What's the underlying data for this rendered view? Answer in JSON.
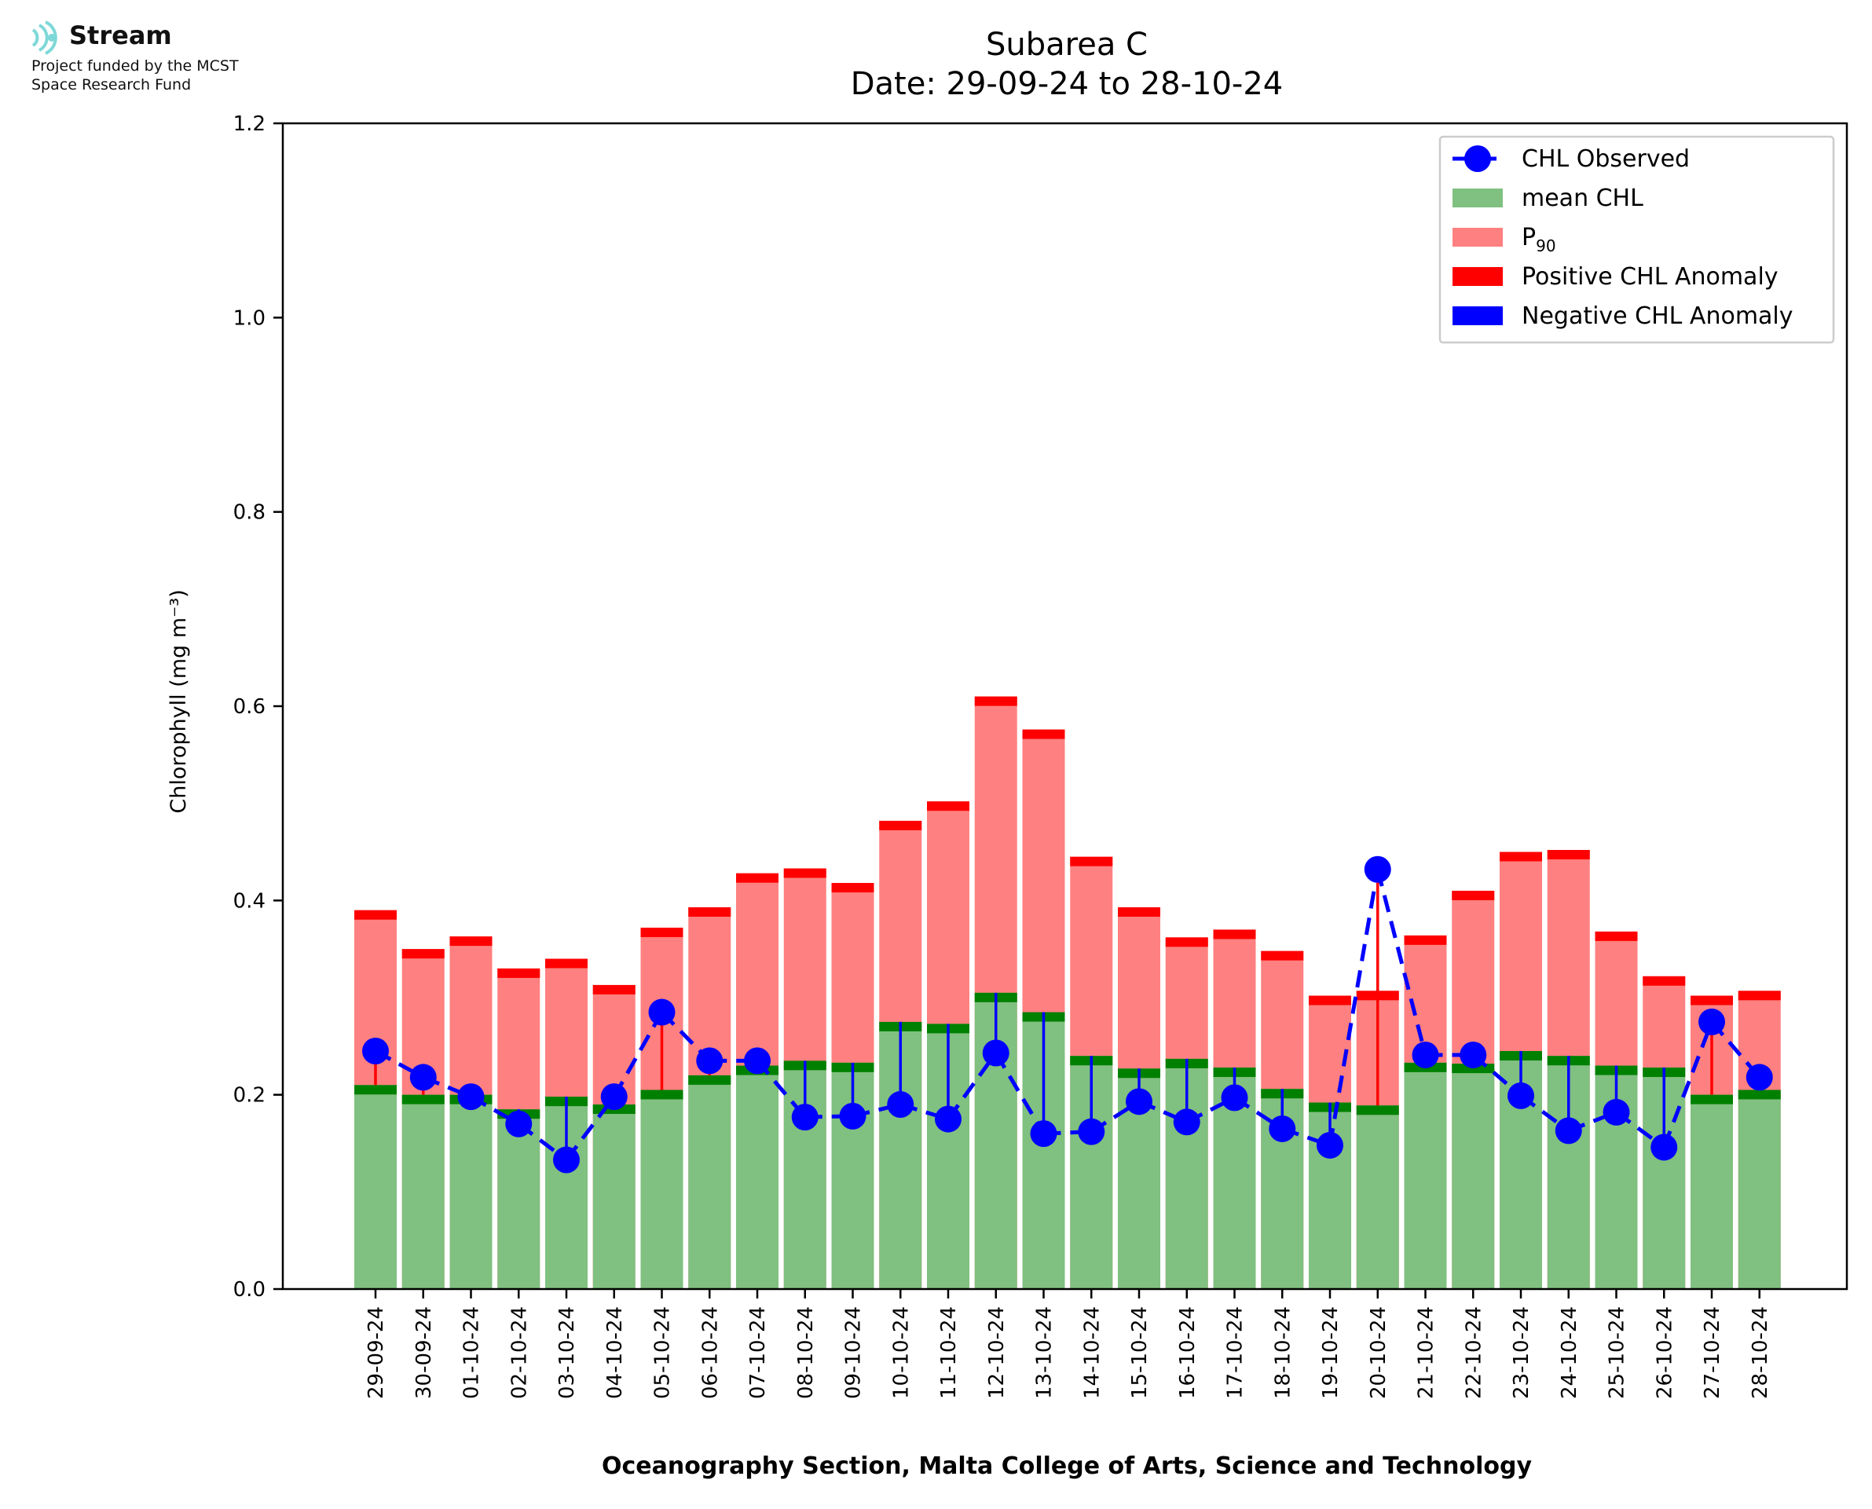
{
  "logo": {
    "name": "Stream",
    "subtitle_line1": "Project funded by the MCST",
    "subtitle_line2": "Space Research Fund",
    "icon": "stream-waves-icon"
  },
  "chart_data": {
    "type": "bar",
    "title": "Subarea C",
    "subtitle": "Date: 29-09-24 to 28-10-24",
    "ylabel": "Chlorophyll (mg m⁻³)",
    "xlabel": "Oceanography Section, Malta College of Arts, Science and Technology",
    "ylim": [
      0,
      1.2
    ],
    "yticks": [
      "0.0",
      "0.2",
      "0.4",
      "0.6",
      "0.8",
      "1.0",
      "1.2"
    ],
    "grid": false,
    "legend_position": "top-right",
    "legend": [
      "CHL Observed",
      "mean CHL",
      "P",
      "Positive CHL Anomaly",
      "Negative CHL Anomaly"
    ],
    "legend_p90_subscript": "90",
    "colors": {
      "observed": "#0000ff",
      "mean": "#80c080",
      "mean_cap": "#008000",
      "p90": "#ff8080",
      "p90_cap": "#ff0000",
      "positive": "#ff0000",
      "negative": "#0000ff"
    },
    "categories": [
      "29-09-24",
      "30-09-24",
      "01-10-24",
      "02-10-24",
      "03-10-24",
      "04-10-24",
      "05-10-24",
      "06-10-24",
      "07-10-24",
      "08-10-24",
      "09-10-24",
      "10-10-24",
      "11-10-24",
      "12-10-24",
      "13-10-24",
      "14-10-24",
      "15-10-24",
      "16-10-24",
      "17-10-24",
      "18-10-24",
      "19-10-24",
      "20-10-24",
      "21-10-24",
      "22-10-24",
      "23-10-24",
      "24-10-24",
      "25-10-24",
      "26-10-24",
      "27-10-24",
      "28-10-24"
    ],
    "series": [
      {
        "name": "CHL Observed",
        "values": [
          0.245,
          0.218,
          0.198,
          0.17,
          0.133,
          0.198,
          0.285,
          0.235,
          0.235,
          0.177,
          0.178,
          0.19,
          0.175,
          0.243,
          0.16,
          0.162,
          0.193,
          0.172,
          0.197,
          0.165,
          0.148,
          0.432,
          0.241,
          0.241,
          0.199,
          0.163,
          0.182,
          0.146,
          0.275,
          0.218
        ]
      },
      {
        "name": "mean CHL",
        "values": [
          0.21,
          0.2,
          0.2,
          0.185,
          0.198,
          0.19,
          0.205,
          0.22,
          0.23,
          0.235,
          0.233,
          0.275,
          0.273,
          0.305,
          0.285,
          0.24,
          0.227,
          0.237,
          0.228,
          0.206,
          0.192,
          0.189,
          0.233,
          0.232,
          0.245,
          0.24,
          0.23,
          0.228,
          0.2,
          0.205
        ]
      },
      {
        "name": "P90",
        "values": [
          0.39,
          0.35,
          0.363,
          0.33,
          0.34,
          0.313,
          0.372,
          0.393,
          0.428,
          0.433,
          0.418,
          0.482,
          0.502,
          0.61,
          0.576,
          0.445,
          0.393,
          0.362,
          0.37,
          0.348,
          0.302,
          0.307,
          0.364,
          0.41,
          0.45,
          0.452,
          0.368,
          0.322,
          0.302,
          0.307
        ]
      }
    ]
  }
}
